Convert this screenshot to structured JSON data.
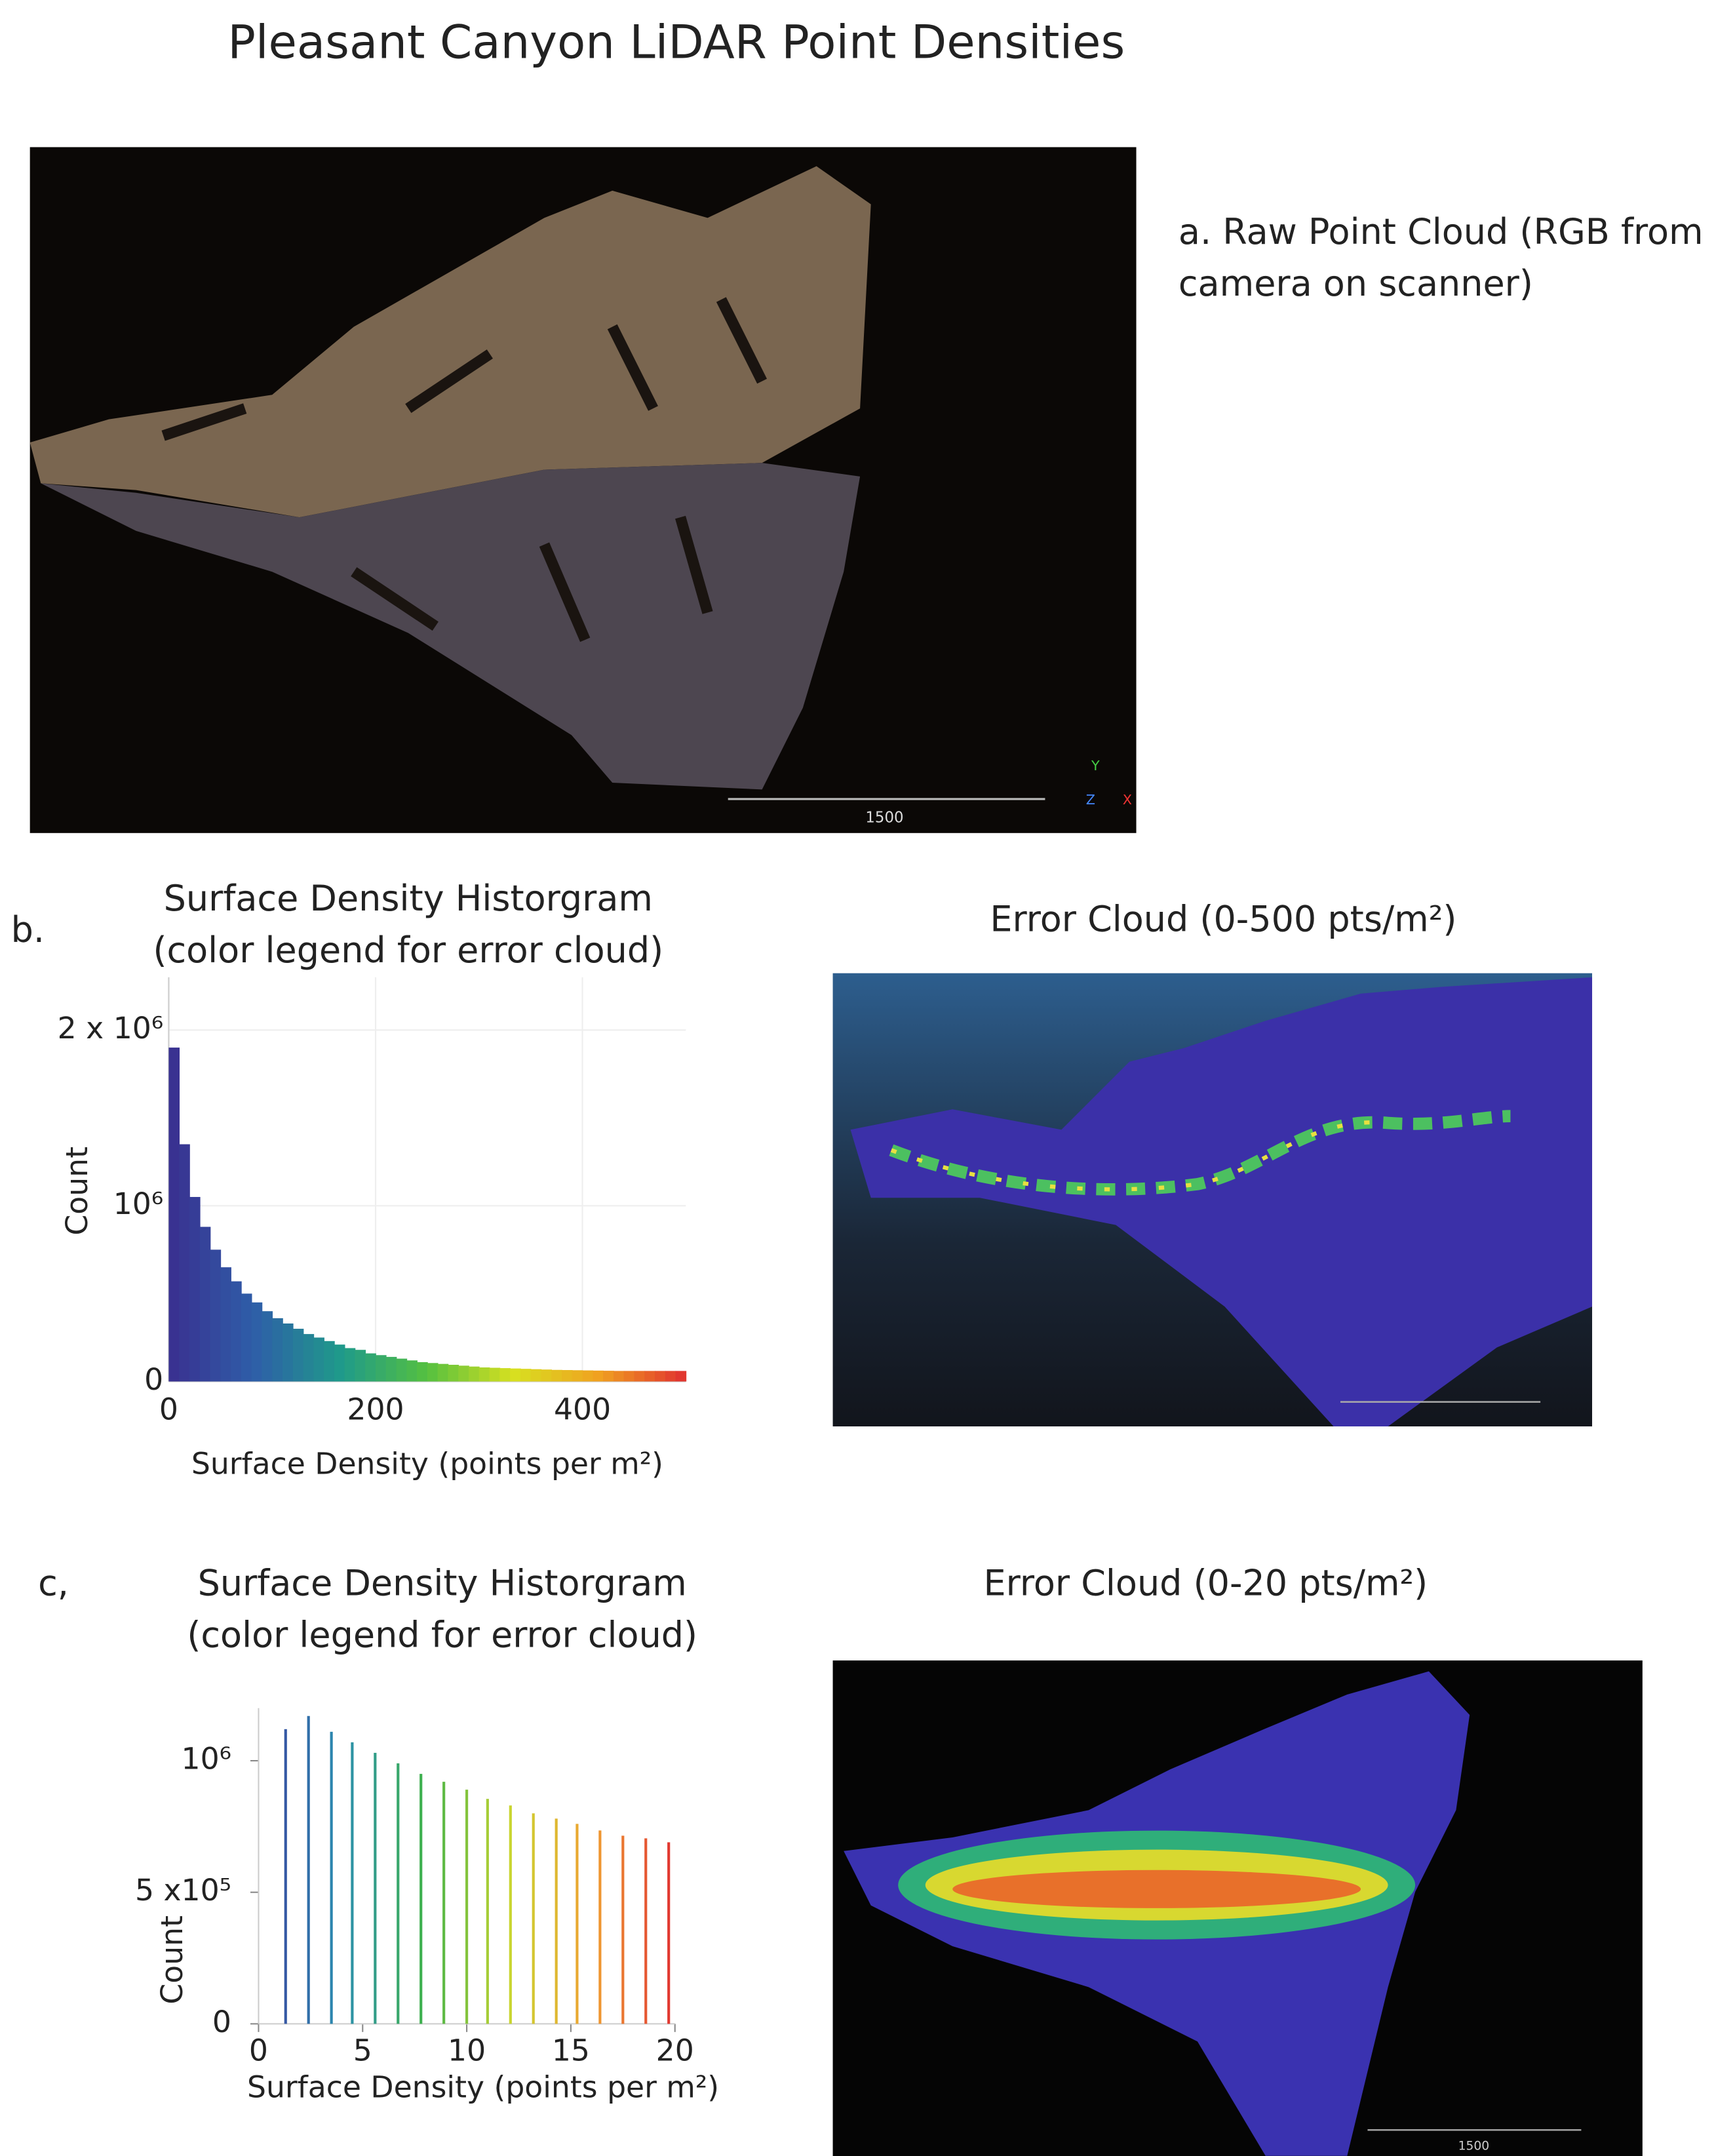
{
  "title": "Pleasant Canyon LiDAR Point Densities",
  "panel_a": {
    "label_lines": [
      "a. Raw Point Cloud (RGB from",
      "camera on scanner)"
    ],
    "scale_label": "1500",
    "axis_letters": [
      "Y",
      "Z",
      "X"
    ]
  },
  "panel_b": {
    "label": "b.",
    "image_title": "Error Cloud (0-500 pts/m²)"
  },
  "panel_c": {
    "label": "c,",
    "image_title": "Error Cloud (0-20 pts/m²)",
    "scale_label": "1500"
  },
  "chart_data": [
    {
      "type": "histogram",
      "title": "Surface Density Historgram",
      "subtitle": "(color legend for error cloud)",
      "xlabel": "Surface Density (points per m²)",
      "ylabel": "Count",
      "bins": [
        0,
        10,
        20,
        30,
        40,
        50,
        60,
        70,
        80,
        90,
        100,
        110,
        120,
        130,
        140,
        150,
        160,
        170,
        180,
        190,
        200,
        210,
        220,
        230,
        240,
        250,
        260,
        270,
        280,
        290,
        300,
        310,
        320,
        330,
        340,
        350,
        360,
        370,
        380,
        390,
        400,
        410,
        420,
        430,
        440,
        450,
        460,
        470,
        480,
        490,
        500
      ],
      "values": [
        1900000,
        1350000,
        1050000,
        880000,
        750000,
        650000,
        570000,
        500000,
        450000,
        400000,
        360000,
        330000,
        300000,
        270000,
        250000,
        230000,
        210000,
        190000,
        180000,
        160000,
        150000,
        140000,
        130000,
        120000,
        110000,
        105000,
        100000,
        95000,
        90000,
        85000,
        80000,
        78000,
        76000,
        74000,
        72000,
        70000,
        68000,
        66000,
        65000,
        64000,
        63000,
        62000,
        61000,
        60000,
        60000,
        60000,
        60000,
        60000,
        60000,
        60000
      ],
      "xlim": [
        0,
        500
      ],
      "ylim": [
        0,
        2300000
      ],
      "xticks": [
        0,
        200,
        400
      ],
      "yticks": [
        0,
        {
          "value": 1000000,
          "label": "10⁶"
        },
        {
          "value": 2000000,
          "label": "2 x 10⁶"
        }
      ],
      "grid": true,
      "color_stops": [
        "#3a2f8f",
        "#2e5fa8",
        "#1f9a8a",
        "#55c040",
        "#d8e020",
        "#f0a020",
        "#e03030"
      ]
    },
    {
      "type": "bar",
      "title": "Surface Density Historgram",
      "subtitle": "(color legend for error cloud)",
      "xlabel": "Surface Density (points per m²)",
      "ylabel": "Count",
      "x": [
        1.3,
        2.4,
        3.5,
        4.5,
        5.6,
        6.7,
        7.8,
        8.9,
        10,
        11,
        12.1,
        13.2,
        14.3,
        15.3,
        16.4,
        17.5,
        18.6,
        19.7
      ],
      "values": [
        1120000,
        1170000,
        1110000,
        1070000,
        1030000,
        990000,
        950000,
        920000,
        890000,
        855000,
        830000,
        800000,
        780000,
        760000,
        735000,
        715000,
        705000,
        690000
      ],
      "xlim": [
        0,
        20
      ],
      "ylim": [
        0,
        1200000
      ],
      "xticks": [
        0,
        5,
        10,
        15,
        20
      ],
      "yticks": [
        0,
        {
          "value": 500000,
          "label": "5 x10⁵"
        },
        {
          "value": 1000000,
          "label": "10⁶"
        }
      ],
      "grid": false,
      "color_stops": [
        "#3b3f9e",
        "#2a8fb0",
        "#3fb24a",
        "#c8d630",
        "#f0a030",
        "#e03030"
      ]
    }
  ]
}
